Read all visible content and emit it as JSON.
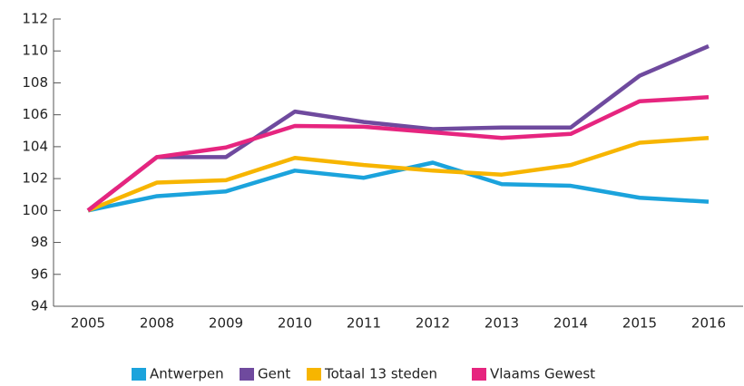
{
  "chart_data": {
    "type": "line",
    "categories": [
      "2005",
      "2008",
      "2009",
      "2010",
      "2011",
      "2012",
      "2013",
      "2014",
      "2015",
      "2016"
    ],
    "series": [
      {
        "name": "Antwerpen",
        "color": "#1ba3dc",
        "values": [
          100,
          100.9,
          101.2,
          102.5,
          102.05,
          103.0,
          101.65,
          101.55,
          100.8,
          100.55
        ]
      },
      {
        "name": "Gent",
        "color": "#6f4a9e",
        "values": [
          100,
          103.35,
          103.35,
          106.2,
          105.55,
          105.1,
          105.2,
          105.2,
          108.45,
          110.3
        ]
      },
      {
        "name": "Totaal 13 steden",
        "color": "#f7b500",
        "values": [
          100,
          101.75,
          101.9,
          103.3,
          102.85,
          102.5,
          102.25,
          102.85,
          104.25,
          104.55
        ]
      },
      {
        "name": "Vlaams Gewest",
        "color": "#e6257f",
        "values": [
          100,
          103.35,
          103.95,
          105.3,
          105.25,
          104.9,
          104.55,
          104.8,
          106.85,
          107.1
        ]
      }
    ],
    "ylim": [
      94,
      112
    ],
    "yticks": [
      94,
      96,
      98,
      100,
      102,
      104,
      106,
      108,
      110,
      112
    ],
    "legend": "bottom"
  }
}
